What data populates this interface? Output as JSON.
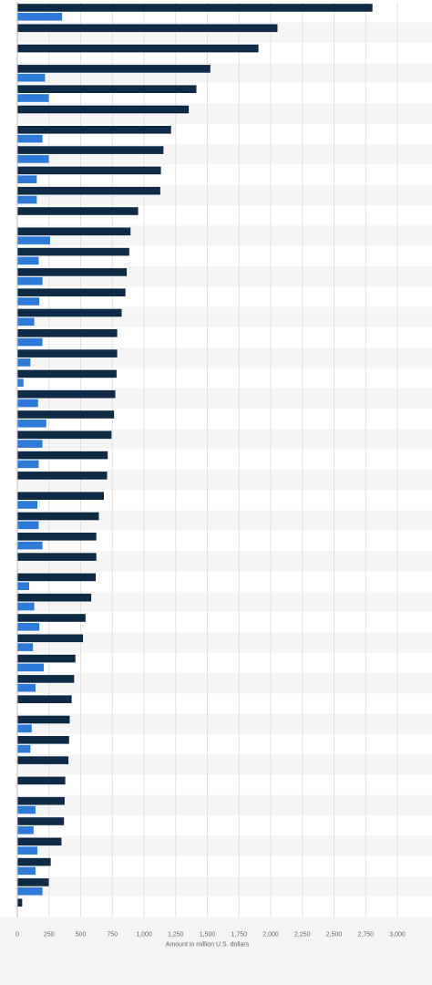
{
  "chart_data": {
    "type": "bar",
    "orientation": "horizontal",
    "title": "",
    "xlabel": "Amount in million U.S. dollars",
    "ylabel": "",
    "xlim": [
      0,
      3000
    ],
    "x_ticks": [
      "0",
      "250",
      "500",
      "750",
      "1,000",
      "1,250",
      "1,500",
      "1,750",
      "2,000",
      "2,250",
      "2,500",
      "2,750",
      "3,000"
    ],
    "grid": true,
    "category_labels_visible": false,
    "series": [
      {
        "color": "#0f2a44",
        "values": [
          2800,
          2050,
          1900,
          1520,
          1410,
          1350,
          1210,
          1150,
          1130,
          1125,
          950,
          890,
          880,
          860,
          850,
          820,
          785,
          785,
          780,
          770,
          760,
          740,
          710,
          705,
          680,
          640,
          620,
          620,
          615,
          580,
          535,
          515,
          455,
          445,
          425,
          410,
          405,
          400,
          375,
          370,
          365,
          345,
          260,
          245,
          35
        ]
      },
      {
        "color": "#2e7ad9",
        "values": [
          350,
          null,
          null,
          215,
          245,
          null,
          195,
          245,
          150,
          150,
          null,
          255,
          165,
          195,
          170,
          130,
          195,
          100,
          45,
          160,
          225,
          195,
          165,
          null,
          155,
          165,
          195,
          null,
          90,
          130,
          170,
          120,
          205,
          140,
          null,
          110,
          100,
          null,
          null,
          140,
          125,
          155,
          140,
          195,
          null
        ]
      }
    ]
  }
}
